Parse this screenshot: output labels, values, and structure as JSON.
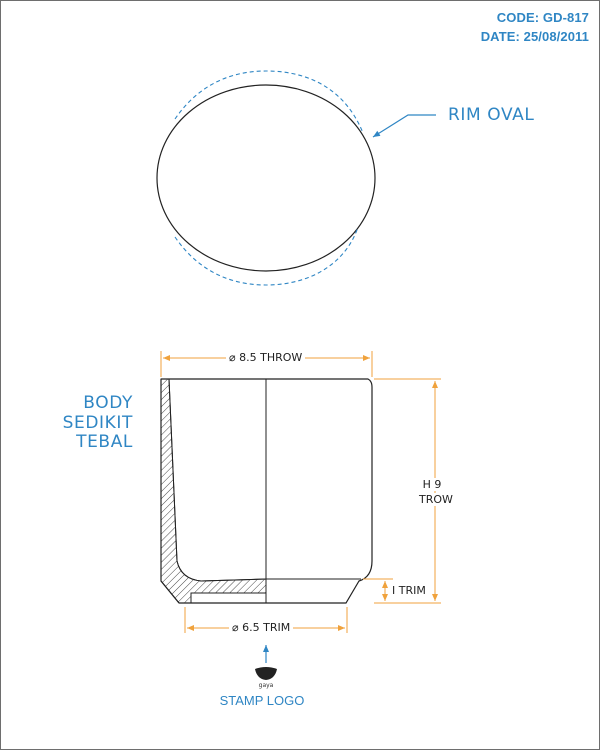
{
  "header": {
    "code": "CODE: GD-817",
    "date": "DATE: 25/08/2011"
  },
  "labels": {
    "rim": "RIM OVAL",
    "body": [
      "BODY",
      "SEDIKIT",
      "TEBAL"
    ],
    "stamp": "STAMP LOGO",
    "stamp_mark": "gaya"
  },
  "dimensions": {
    "top_width": "⌀ 8.5 THROW",
    "bottom_width": "⌀ 6.5 TRIM",
    "height_line1": "H 9",
    "height_line2": "TROW",
    "foot_height": "I TRIM"
  },
  "colors": {
    "accent": "#2f86c4",
    "dimension": "#f0a23c",
    "outline": "#222222"
  }
}
